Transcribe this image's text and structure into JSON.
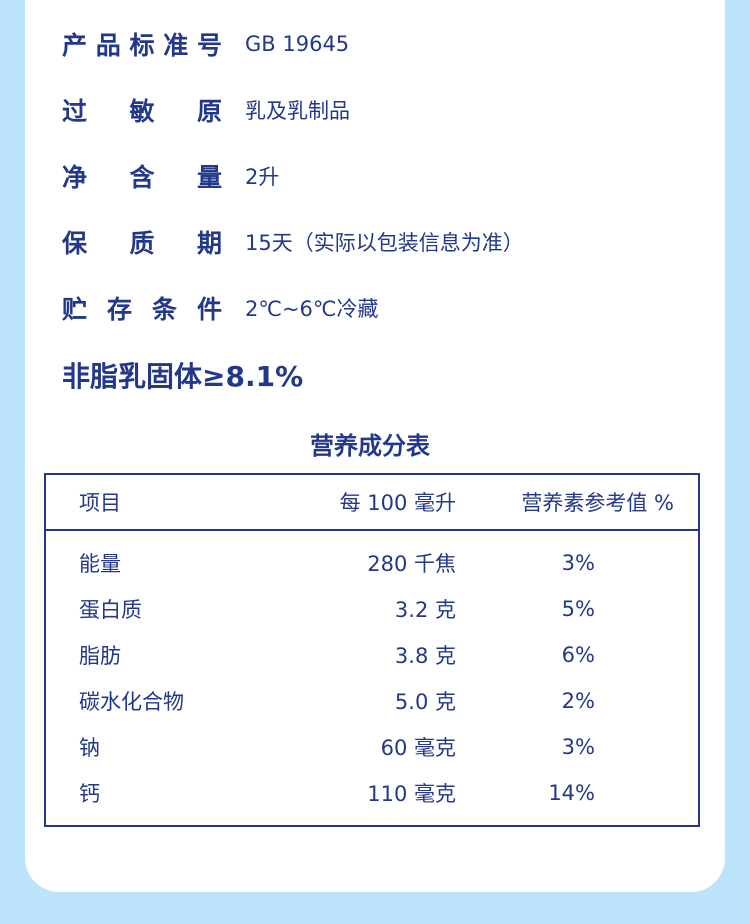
{
  "info": [
    {
      "label": [
        "产",
        "品",
        "标",
        "准",
        "号"
      ],
      "value": "GB 19645"
    },
    {
      "label": [
        "过",
        "敏",
        "原"
      ],
      "value": "乳及乳制品"
    },
    {
      "label": [
        "净",
        "含",
        "量"
      ],
      "value": "2升"
    },
    {
      "label": [
        "保",
        "质",
        "期"
      ],
      "value": "15天（实际以包装信息为准）"
    },
    {
      "label": [
        "贮",
        "存",
        "条",
        "件"
      ],
      "value": "2℃~6℃冷藏"
    }
  ],
  "solids": "非脂乳固体≥8.1%",
  "table_title": "营养成分表",
  "table": {
    "headers": [
      "项目",
      "每 100 毫升",
      "营养素参考值 %"
    ],
    "rows": [
      [
        "能量",
        "280 千焦",
        "3%"
      ],
      [
        "蛋白质",
        "3.2 克",
        "5%"
      ],
      [
        "脂肪",
        "3.8 克",
        "6%"
      ],
      [
        "碳水化合物",
        "5.0 克",
        "2%"
      ],
      [
        "钠",
        "60 毫克",
        "3%"
      ],
      [
        "钙",
        "110 毫克",
        "14%"
      ]
    ]
  },
  "colors": {
    "text": "#23388a",
    "background": "#bde3fa",
    "card": "#ffffff"
  }
}
